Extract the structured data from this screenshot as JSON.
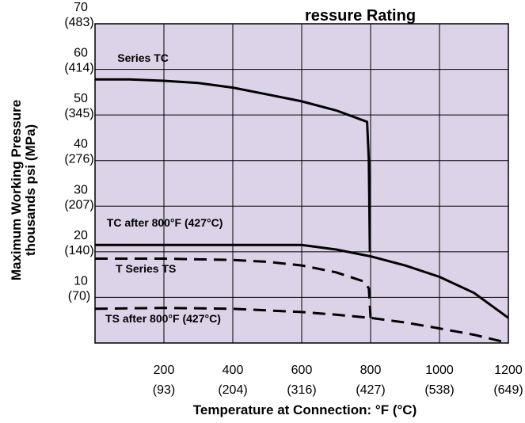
{
  "chart_data": {
    "type": "line",
    "title": "ressure Rating",
    "xlabel": "Temperature at Connection: °F (°C)",
    "ylabel": [
      "Maximum Working Pressure",
      "thousands psi (MPa)"
    ],
    "xlim": [
      0,
      1200
    ],
    "ylim": [
      0,
      70
    ],
    "x_ticks": [
      {
        "value": 200,
        "label": "200",
        "sub": "(93)"
      },
      {
        "value": 400,
        "label": "400",
        "sub": "(204)"
      },
      {
        "value": 600,
        "label": "600",
        "sub": "(316)"
      },
      {
        "value": 800,
        "label": "800",
        "sub": "(427)"
      },
      {
        "value": 1000,
        "label": "1000",
        "sub": "(538)"
      },
      {
        "value": 1200,
        "label": "1200",
        "sub": "(649)"
      }
    ],
    "y_ticks": [
      {
        "value": 10,
        "label": "10",
        "sub": "(70)"
      },
      {
        "value": 20,
        "label": "20",
        "sub": "(140)"
      },
      {
        "value": 30,
        "label": "30",
        "sub": "(207)"
      },
      {
        "value": 40,
        "label": "40",
        "sub": "(276)"
      },
      {
        "value": 50,
        "label": "50",
        "sub": "(345)"
      },
      {
        "value": 60,
        "label": "60",
        "sub": "(414)"
      },
      {
        "value": 70,
        "label": "70",
        "sub": "(483)"
      }
    ],
    "grid": true,
    "plot_background": "#dcd3e8",
    "series": [
      {
        "name": "Series TC",
        "style": "solid",
        "x": [
          0,
          100,
          200,
          300,
          400,
          500,
          600,
          700,
          790,
          795,
          798
        ],
        "y": [
          57.8,
          57.8,
          57.5,
          57,
          56,
          54.5,
          53,
          51,
          48.5,
          40,
          20
        ]
      },
      {
        "name": "TC after 800°F (427°C)",
        "style": "solid",
        "x": [
          0,
          200,
          400,
          600,
          700,
          800,
          900,
          1000,
          1100,
          1200
        ],
        "y": [
          21.5,
          21.5,
          21.5,
          21.5,
          20.5,
          19,
          17,
          14.5,
          11,
          5.5
        ]
      },
      {
        "name": "T Series TS",
        "style": "dashed",
        "x": [
          0,
          200,
          400,
          500,
          600,
          700,
          780,
          795,
          800
        ],
        "y": [
          18.5,
          18.5,
          18.2,
          17.8,
          17,
          15.5,
          13.5,
          12,
          5.5
        ]
      },
      {
        "name": "TS after 800°F (427°C)",
        "style": "dashed",
        "x": [
          0,
          200,
          400,
          600,
          700,
          800,
          900,
          1000,
          1100,
          1200
        ],
        "y": [
          7.5,
          7.7,
          7.5,
          6.8,
          6.2,
          5.5,
          4.5,
          3.2,
          1.8,
          0
        ]
      }
    ]
  }
}
